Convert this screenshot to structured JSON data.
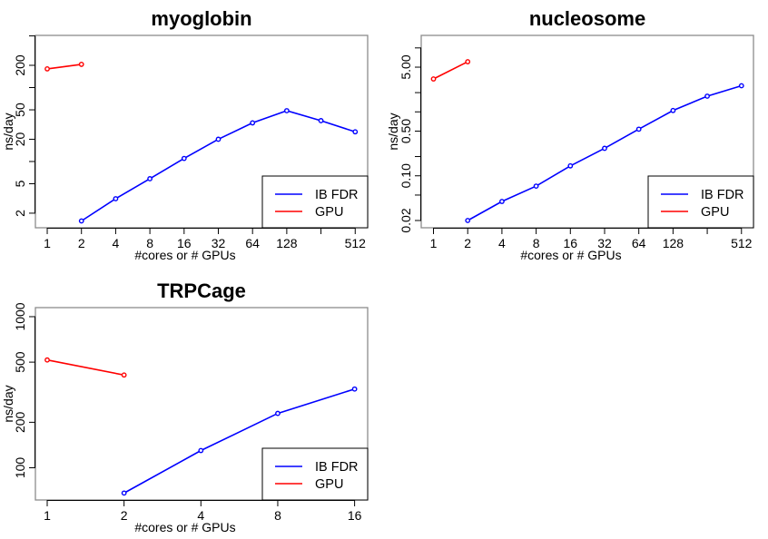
{
  "colors": {
    "ib_fdr": "#0000ff",
    "gpu": "#ff0000",
    "frame": "#8c8c8c",
    "axis": "#000000"
  },
  "chart_data": [
    {
      "type": "line",
      "title": "myoglobin",
      "xlabel": "#cores or # GPUs",
      "ylabel": "ns/day",
      "xscale": "log2",
      "yscale": "log10",
      "xlim": [
        0.787,
        659
      ],
      "ylim": [
        1.27,
        508
      ],
      "xticks": [
        1,
        2,
        4,
        8,
        16,
        32,
        64,
        128,
        256,
        512
      ],
      "xtick_labels": [
        "1",
        "2",
        "4",
        "8",
        "16",
        "32",
        "64",
        "128",
        "",
        "512"
      ],
      "yticks": [
        2,
        5,
        10,
        20,
        50,
        100,
        200,
        500
      ],
      "ytick_labels": [
        "2",
        "5",
        "",
        "20",
        "50",
        "",
        "200",
        ""
      ],
      "grid": false,
      "legend": {
        "position": "bottom-right",
        "entries": [
          "IB FDR",
          "GPU"
        ]
      },
      "series": [
        {
          "name": "IB FDR",
          "color": "#0000ff",
          "x": [
            2,
            4,
            8,
            16,
            32,
            64,
            128,
            256,
            512
          ],
          "y": [
            1.57,
            3.14,
            5.85,
            11.0,
            20.0,
            33.3,
            48.7,
            35.7,
            25.2
          ]
        },
        {
          "name": "GPU",
          "color": "#ff0000",
          "x": [
            1,
            2
          ],
          "y": [
            179,
            206
          ]
        }
      ]
    },
    {
      "type": "line",
      "title": "nucleosome",
      "xlabel": "#cores or # GPUs",
      "ylabel": "ns/day",
      "xscale": "log2",
      "yscale": "log10",
      "xlim": [
        0.78,
        653
      ],
      "ylim": [
        0.0154,
        15.7
      ],
      "xticks": [
        1,
        2,
        4,
        8,
        16,
        32,
        64,
        128,
        256,
        512
      ],
      "xtick_labels": [
        "1",
        "2",
        "4",
        "8",
        "16",
        "32",
        "64",
        "128",
        "",
        "512"
      ],
      "yticks": [
        0.02,
        0.05,
        0.1,
        0.2,
        0.5,
        1,
        2,
        5,
        10
      ],
      "ytick_labels": [
        "0.02",
        "",
        "0.10",
        "",
        "0.50",
        "",
        "",
        "5.00",
        ""
      ],
      "grid": false,
      "legend": {
        "position": "bottom-right",
        "entries": [
          "IB FDR",
          "GPU"
        ]
      },
      "series": [
        {
          "name": "IB FDR",
          "color": "#0000ff",
          "x": [
            2,
            4,
            8,
            16,
            32,
            64,
            128,
            256,
            512
          ],
          "y": [
            0.02,
            0.0397,
            0.069,
            0.143,
            0.269,
            0.536,
            1.05,
            1.76,
            2.56
          ]
        },
        {
          "name": "GPU",
          "color": "#ff0000",
          "x": [
            1,
            2
          ],
          "y": [
            3.27,
            6.08
          ]
        }
      ]
    },
    {
      "type": "line",
      "title": "TRPCage",
      "xlabel": "#cores or # GPUs",
      "ylabel": "ns/day",
      "xscale": "log2",
      "yscale": "log10",
      "xlim": [
        0.899,
        18
      ],
      "ylim": [
        61.2,
        1148
      ],
      "xticks": [
        1,
        2,
        4,
        8,
        16
      ],
      "xtick_labels": [
        "1",
        "2",
        "4",
        "8",
        "16"
      ],
      "yticks": [
        100,
        200,
        500,
        1000
      ],
      "ytick_labels": [
        "100",
        "200",
        "500",
        "1000"
      ],
      "grid": false,
      "legend": {
        "position": "bottom-right",
        "entries": [
          "IB FDR",
          "GPU"
        ]
      },
      "series": [
        {
          "name": "IB FDR",
          "color": "#0000ff",
          "x": [
            2,
            4,
            8,
            16
          ],
          "y": [
            68,
            130,
            229,
            332
          ]
        },
        {
          "name": "GPU",
          "color": "#ff0000",
          "x": [
            1,
            2
          ],
          "y": [
            517,
            411
          ]
        }
      ]
    }
  ]
}
